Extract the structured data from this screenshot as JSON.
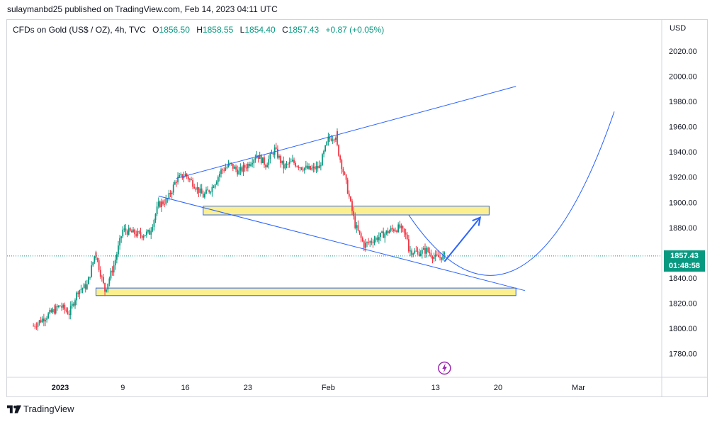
{
  "header": {
    "publisher_line": "sulaymanbd25 published on TradingView.com, Feb 14, 2023 04:11 UTC"
  },
  "legend": {
    "symbol": "CFDs on Gold (US$ / OZ), 4h, TVC",
    "open_label": "O",
    "open": "1856.50",
    "high_label": "H",
    "high": "1858.55",
    "low_label": "L",
    "low": "1854.40",
    "close_label": "C",
    "close": "1857.43",
    "change": "+0.87 (+0.05%)"
  },
  "price_axis": {
    "currency": "USD"
  },
  "price_badge": {
    "price": "1857.43",
    "countdown": "01:48:58"
  },
  "footer": {
    "brand": "TradingView"
  },
  "colors": {
    "up": "#089981",
    "down": "#f23645",
    "trendline": "#2962ff",
    "zone_fill": "#fbef8f",
    "zone_border": "#2962ff"
  },
  "chart_data": {
    "type": "candlestick",
    "instrument": "CFDs on Gold (US$ / OZ)",
    "timeframe": "4h",
    "ylim": [
      1765,
      2040
    ],
    "y_ticks": [
      "1780.00",
      "1800.00",
      "1820.00",
      "1840.00",
      "1860.00",
      "1880.00",
      "1900.00",
      "1920.00",
      "1940.00",
      "1960.00",
      "1980.00",
      "2000.00",
      "2020.00"
    ],
    "x_ticks": [
      {
        "label": "2023",
        "bold": true,
        "date": "2023-01-02"
      },
      {
        "label": "9",
        "bold": false,
        "date": "2023-01-09"
      },
      {
        "label": "16",
        "bold": false,
        "date": "2023-01-16"
      },
      {
        "label": "23",
        "bold": false,
        "date": "2023-01-23"
      },
      {
        "label": "Feb",
        "bold": false,
        "date": "2023-02-01"
      },
      {
        "label": "13",
        "bold": false,
        "date": "2023-02-13"
      },
      {
        "label": "20",
        "bold": false,
        "date": "2023-02-20"
      },
      {
        "label": "Mar",
        "bold": false,
        "date": "2023-03-01"
      }
    ],
    "last_price": 1857.43,
    "price_path": [
      [
        "2022-12-30",
        1802
      ],
      [
        "2023-01-02",
        1818
      ],
      [
        "2023-01-03",
        1812
      ],
      [
        "2023-01-04",
        1830
      ],
      [
        "2023-01-05",
        1834
      ],
      [
        "2023-01-06",
        1862
      ],
      [
        "2023-01-06",
        1858
      ],
      [
        "2023-01-07",
        1830
      ],
      [
        "2023-01-08",
        1850
      ],
      [
        "2023-01-09",
        1878
      ],
      [
        "2023-01-10",
        1876
      ],
      [
        "2023-01-11",
        1874
      ],
      [
        "2023-01-12",
        1876
      ],
      [
        "2023-01-13",
        1898
      ],
      [
        "2023-01-14",
        1902
      ],
      [
        "2023-01-15",
        1918
      ],
      [
        "2023-01-16",
        1922
      ],
      [
        "2023-01-17",
        1914
      ],
      [
        "2023-01-18",
        1905
      ],
      [
        "2023-01-19",
        1912
      ],
      [
        "2023-01-20",
        1925
      ],
      [
        "2023-01-21",
        1930
      ],
      [
        "2023-01-22",
        1924
      ],
      [
        "2023-01-23",
        1930
      ],
      [
        "2023-01-24",
        1938
      ],
      [
        "2023-01-25",
        1930
      ],
      [
        "2023-01-26",
        1942
      ],
      [
        "2023-01-27",
        1928
      ],
      [
        "2023-01-28",
        1932
      ],
      [
        "2023-01-29",
        1928
      ],
      [
        "2023-01-30",
        1926
      ],
      [
        "2023-01-31",
        1928
      ],
      [
        "2023-02-01",
        1950
      ],
      [
        "2023-02-02",
        1954
      ],
      [
        "2023-02-02",
        1944
      ],
      [
        "2023-02-03",
        1915
      ],
      [
        "2023-02-04",
        1882
      ],
      [
        "2023-02-05",
        1866
      ],
      [
        "2023-02-06",
        1870
      ],
      [
        "2023-02-07",
        1874
      ],
      [
        "2023-02-08",
        1878
      ],
      [
        "2023-02-09",
        1880
      ],
      [
        "2023-02-10",
        1870
      ],
      [
        "2023-02-10",
        1862
      ],
      [
        "2023-02-11",
        1860
      ],
      [
        "2023-02-12",
        1862
      ],
      [
        "2023-02-13",
        1856
      ],
      [
        "2023-02-14",
        1857.43
      ]
    ],
    "annotations": {
      "upper_trendline": {
        "from": [
          "2023-01-15",
          1919
        ],
        "to": [
          "2023-02-22",
          1992
        ]
      },
      "lower_trendline": {
        "from": [
          "2023-01-13",
          1905
        ],
        "to": [
          "2023-02-23",
          1830
        ]
      },
      "resistance_zone": {
        "from": "2023-01-18",
        "to": "2023-02-19",
        "low": 1890,
        "high": 1897
      },
      "support_zone": {
        "from": "2023-01-06",
        "to": "2023-02-22",
        "low": 1826,
        "high": 1832
      },
      "forecast_arrow": {
        "from": [
          "2023-02-14",
          1853
        ],
        "to": [
          "2023-02-18",
          1888
        ]
      },
      "projected_curve": [
        [
          "2023-02-10",
          1890
        ],
        [
          "2023-02-18",
          1840
        ],
        [
          "2023-02-23",
          1848
        ],
        [
          "2023-03-05",
          1972
        ]
      ]
    }
  }
}
